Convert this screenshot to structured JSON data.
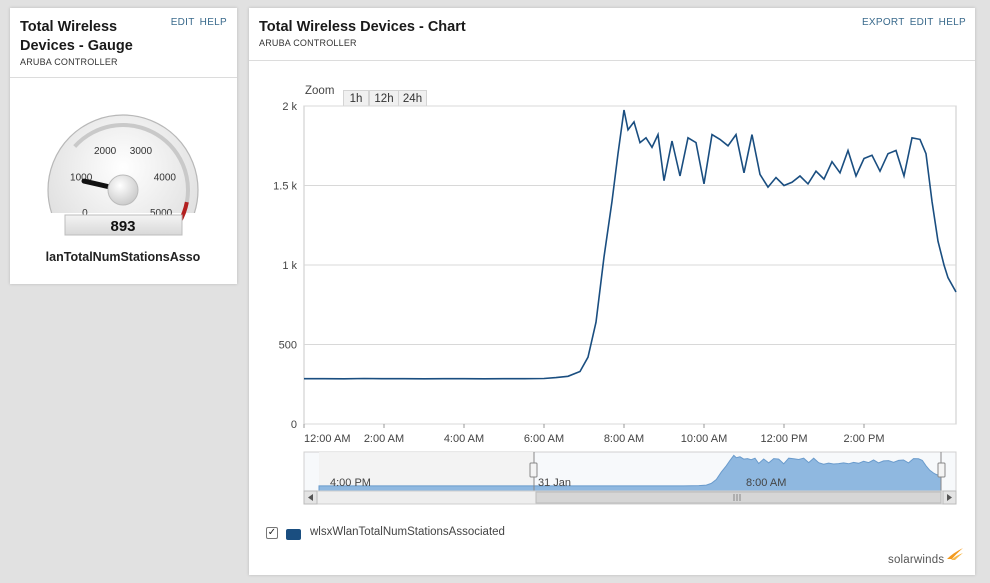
{
  "gauge_panel": {
    "title_line1": "Total Wireless",
    "title_line2": "Devices - Gauge",
    "subtitle": "ARUBA CONTROLLER",
    "actions": {
      "edit": "EDIT",
      "help": "HELP"
    },
    "gauge": {
      "ticks": [
        "0",
        "1000",
        "2000",
        "3000",
        "4000",
        "5000"
      ],
      "value": 893,
      "value_display": "893",
      "min": 0,
      "max": 5000,
      "caption": "lanTotalNumStationsAsso",
      "redzone_color": "#b32020"
    }
  },
  "chart_panel": {
    "title": "Total Wireless Devices - Chart",
    "subtitle": "ARUBA CONTROLLER",
    "actions": {
      "export": "EXPORT",
      "edit": "EDIT",
      "help": "HELP"
    },
    "zoom": {
      "label": "Zoom",
      "options": [
        "1h",
        "12h",
        "24h"
      ]
    },
    "legend": {
      "checked": true,
      "check_glyph": "✓",
      "series_name": "wlsxWlanTotalNumStationsAssociated"
    },
    "navigator": {
      "labels": [
        "4:00 PM",
        "31 Jan",
        "8:00 AM"
      ]
    },
    "brand": {
      "text": "solarwinds",
      "accent": "#f39a1e"
    }
  },
  "chart_data": {
    "type": "line",
    "title": "",
    "xlabel": "",
    "ylabel": "",
    "ylim": [
      0,
      2000
    ],
    "y_ticks": [
      "0",
      "500",
      "1 k",
      "1.5 k",
      "2 k"
    ],
    "x_ticks": [
      "12:00 AM",
      "2:00 AM",
      "4:00 AM",
      "6:00 AM",
      "8:00 AM",
      "10:00 AM",
      "12:00 PM",
      "2:00 PM"
    ],
    "grid": true,
    "series": [
      {
        "name": "wlsxWlanTotalNumStationsAssociated",
        "color": "#1a4e80",
        "x_hours": [
          0,
          0.5,
          1,
          1.5,
          2,
          2.5,
          3,
          3.5,
          4,
          4.5,
          5,
          5.5,
          6,
          6.3,
          6.6,
          6.9,
          7.1,
          7.3,
          7.5,
          7.7,
          7.85,
          8,
          8.1,
          8.25,
          8.4,
          8.55,
          8.7,
          8.85,
          9,
          9.2,
          9.4,
          9.6,
          9.8,
          10,
          10.2,
          10.4,
          10.6,
          10.8,
          11,
          11.2,
          11.4,
          11.6,
          11.8,
          12,
          12.2,
          12.4,
          12.6,
          12.8,
          13,
          13.2,
          13.4,
          13.6,
          13.8,
          14,
          14.2,
          14.4,
          14.6,
          14.8,
          15,
          15.2,
          15.4,
          15.55,
          15.7,
          15.85,
          16,
          16.1,
          16.3
        ],
        "values": [
          285,
          285,
          284,
          286,
          285,
          285,
          284,
          285,
          285,
          284,
          285,
          285,
          286,
          292,
          300,
          330,
          420,
          640,
          1050,
          1400,
          1700,
          1975,
          1850,
          1900,
          1770,
          1800,
          1740,
          1820,
          1530,
          1780,
          1560,
          1800,
          1770,
          1510,
          1820,
          1790,
          1750,
          1820,
          1580,
          1820,
          1570,
          1490,
          1550,
          1500,
          1520,
          1560,
          1510,
          1590,
          1540,
          1650,
          1580,
          1720,
          1560,
          1670,
          1690,
          1590,
          1700,
          1720,
          1560,
          1800,
          1790,
          1700,
          1400,
          1150,
          1000,
          920,
          830
        ]
      }
    ]
  }
}
